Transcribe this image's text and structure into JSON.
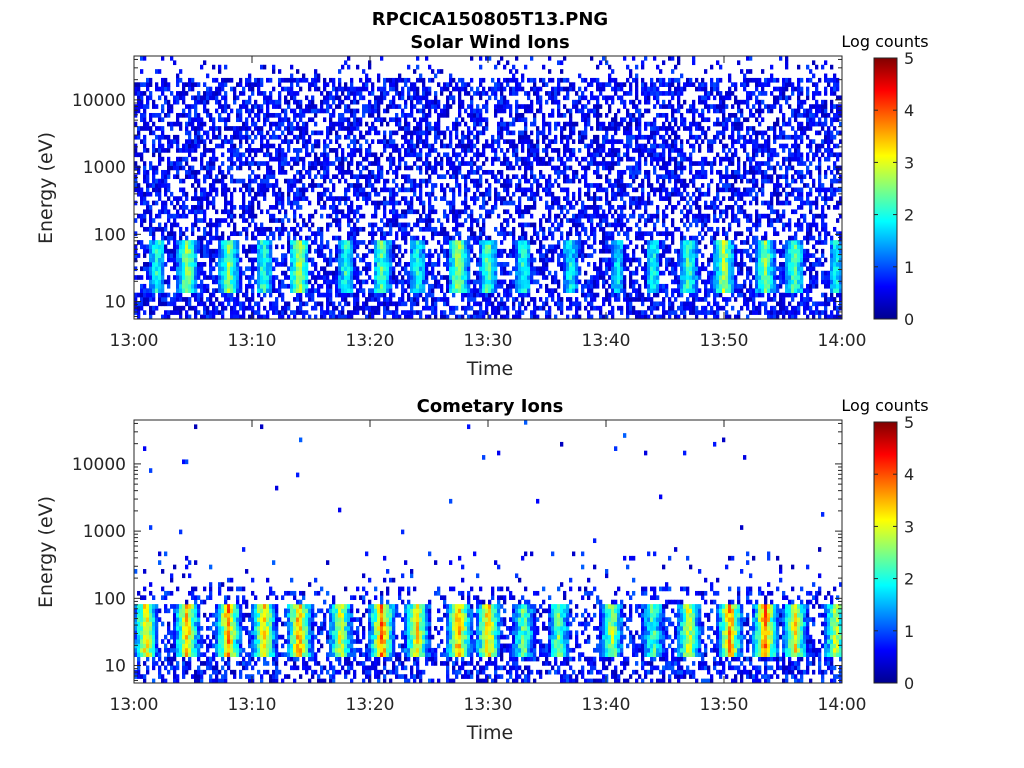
{
  "figure": {
    "title": "RPCICA150805T13.PNG",
    "colorbar_label": "Log counts",
    "colormap": [
      "#00008f",
      "#0000ff",
      "#0080ff",
      "#00ffff",
      "#80ff80",
      "#ffff00",
      "#ff8000",
      "#ff0000",
      "#800000"
    ]
  },
  "chart_data": [
    {
      "type": "heatmap",
      "title": "Solar Wind Ions",
      "xlabel": "Time",
      "ylabel": "Energy (eV)",
      "x_ticks": [
        "13:00",
        "13:10",
        "13:20",
        "13:30",
        "13:40",
        "13:50",
        "14:00"
      ],
      "y_ticks": [
        "10",
        "100",
        "1000",
        "10000"
      ],
      "y_tick_values": [
        10,
        100,
        1000,
        10000
      ],
      "y_scale": "log",
      "ylim": [
        5.5,
        45000
      ],
      "xlim_minutes": [
        0,
        60
      ],
      "clim": [
        0,
        5
      ],
      "colorbar_ticks": [
        "0",
        "1",
        "2",
        "3",
        "4",
        "5"
      ],
      "description_of_values": "background 0-1 log counts across all energies; enhanced 2-3.5 log counts near 25-50 eV",
      "hot_band_energy_eV": [
        25,
        50
      ],
      "hot_band_peak_minutes": [
        2,
        4.5,
        8,
        11,
        14,
        18,
        21,
        24,
        27.5,
        30,
        33,
        37,
        41,
        44,
        47,
        50,
        53.5,
        56,
        59.5
      ],
      "hot_band_peak_logcounts": [
        2.5,
        3.2,
        3.0,
        2.6,
        3.3,
        2.6,
        2.8,
        2.5,
        3.2,
        2.8,
        2.5,
        2.3,
        2.2,
        2.4,
        2.7,
        3.2,
        3.0,
        2.8,
        2.3
      ]
    },
    {
      "type": "heatmap",
      "title": "Cometary Ions",
      "xlabel": "Time",
      "ylabel": "Energy (eV)",
      "x_ticks": [
        "13:00",
        "13:10",
        "13:20",
        "13:30",
        "13:40",
        "13:50",
        "14:00"
      ],
      "y_ticks": [
        "10",
        "100",
        "1000",
        "10000"
      ],
      "y_tick_values": [
        10,
        100,
        1000,
        10000
      ],
      "y_scale": "log",
      "ylim": [
        5.5,
        45000
      ],
      "xlim_minutes": [
        0,
        60
      ],
      "clim": [
        0,
        5
      ],
      "colorbar_ticks": [
        "0",
        "1",
        "2",
        "3",
        "4",
        "5"
      ],
      "description_of_values": "sparse counts above 200 eV; intense 3-4.5 log counts near 25-50 eV",
      "hot_band_energy_eV": [
        25,
        50
      ],
      "hot_band_peak_minutes": [
        1,
        4.5,
        8,
        11,
        14,
        17.5,
        21,
        24,
        27.5,
        30,
        33,
        36,
        40.5,
        44,
        47,
        50.5,
        53.5,
        56,
        59.5
      ],
      "hot_band_peak_logcounts": [
        3.8,
        4.0,
        4.2,
        3.9,
        4.2,
        3.5,
        4.3,
        3.8,
        4.2,
        4.0,
        3.0,
        3.0,
        3.3,
        2.8,
        3.6,
        4.2,
        4.3,
        3.8,
        3.5
      ]
    }
  ]
}
